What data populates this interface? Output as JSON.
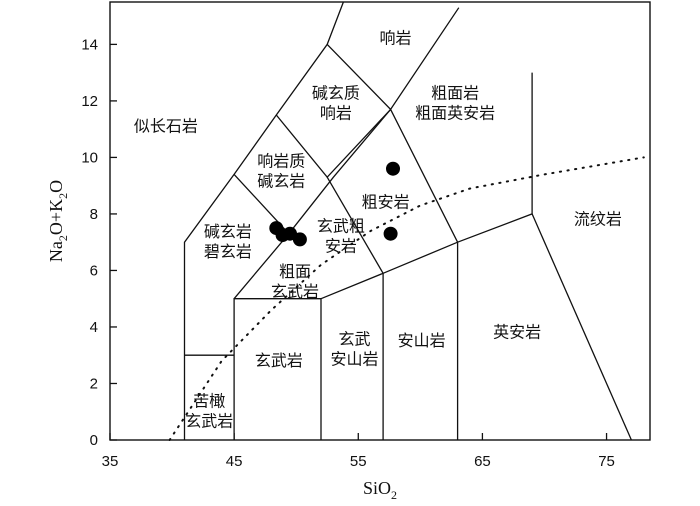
{
  "chart_data": {
    "type": "scatter",
    "title": "",
    "xlabel": {
      "main": "SiO",
      "sub": "2"
    },
    "ylabel": {
      "parts": [
        {
          "t": "Na"
        },
        {
          "t": "2",
          "sub": true
        },
        {
          "t": "O+K"
        },
        {
          "t": "2",
          "sub": true
        },
        {
          "t": "O"
        }
      ]
    },
    "xlim": [
      35,
      78.5
    ],
    "ylim": [
      0,
      15.5
    ],
    "xticks": [
      35,
      45,
      55,
      65,
      75
    ],
    "yticks": [
      0,
      2,
      4,
      6,
      8,
      10,
      12,
      14
    ],
    "grid": false,
    "fields": [
      {
        "lines": [
          "响岩"
        ],
        "x": 58,
        "y": 14.2
      },
      {
        "lines": [
          "碱玄质",
          "响岩"
        ],
        "x": 53.2,
        "y": 11.9
      },
      {
        "lines": [
          "似长石岩"
        ],
        "x": 39.5,
        "y": 11.1
      },
      {
        "lines": [
          "粗面岩",
          "粗面英安岩"
        ],
        "x": 62.8,
        "y": 11.9
      },
      {
        "lines": [
          "响岩质",
          "碱玄岩"
        ],
        "x": 48.8,
        "y": 9.5
      },
      {
        "lines": [
          "粗安岩"
        ],
        "x": 57.2,
        "y": 8.4
      },
      {
        "lines": [
          "碱玄岩",
          "碧玄岩"
        ],
        "x": 44.5,
        "y": 7.0
      },
      {
        "lines": [
          "玄武粗",
          "安岩"
        ],
        "x": 53.6,
        "y": 7.2
      },
      {
        "lines": [
          "粗面",
          "玄武岩"
        ],
        "x": 49.9,
        "y": 5.6
      },
      {
        "lines": [
          "流纹岩"
        ],
        "x": 74.3,
        "y": 7.8
      },
      {
        "lines": [
          "安山岩"
        ],
        "x": 60.1,
        "y": 3.5
      },
      {
        "lines": [
          "英安岩"
        ],
        "x": 67.8,
        "y": 3.8
      },
      {
        "lines": [
          "玄武岩"
        ],
        "x": 48.6,
        "y": 2.8
      },
      {
        "lines": [
          "玄武",
          "安山岩"
        ],
        "x": 54.7,
        "y": 3.2
      },
      {
        "lines": [
          "苦橄",
          "玄武岩"
        ],
        "x": 43.0,
        "y": 1.0
      }
    ],
    "boundaries": [
      [
        [
          41,
          0
        ],
        [
          41,
          7
        ],
        [
          45,
          9.4
        ],
        [
          48.4,
          11.5
        ],
        [
          52.5,
          14
        ],
        [
          53.8,
          15.5
        ]
      ],
      [
        [
          41,
          3
        ],
        [
          45,
          3
        ]
      ],
      [
        [
          45,
          0
        ],
        [
          45,
          5
        ],
        [
          52,
          5
        ],
        [
          52,
          0
        ]
      ],
      [
        [
          45,
          5
        ],
        [
          49.4,
          7.3
        ],
        [
          45,
          9.4
        ]
      ],
      [
        [
          49.4,
          7.3
        ],
        [
          53,
          9.3
        ],
        [
          57.6,
          11.7
        ],
        [
          63.1,
          15.3
        ]
      ],
      [
        [
          52,
          5
        ],
        [
          57,
          5.9
        ],
        [
          63,
          7
        ],
        [
          69,
          8
        ],
        [
          69,
          13
        ]
      ],
      [
        [
          57,
          0
        ],
        [
          57,
          5.9
        ]
      ],
      [
        [
          63,
          0
        ],
        [
          63,
          7
        ]
      ],
      [
        [
          69,
          8
        ],
        [
          77,
          0
        ]
      ],
      [
        [
          48.4,
          11.5
        ],
        [
          52.5,
          9.3
        ],
        [
          57.6,
          11.7
        ]
      ],
      [
        [
          52.5,
          9.3
        ],
        [
          57,
          5.9
        ]
      ],
      [
        [
          52.5,
          14
        ],
        [
          57.6,
          11.7
        ],
        [
          63,
          7
        ]
      ]
    ],
    "alkaline_divide": [
      [
        39.8,
        0
      ],
      [
        44,
        2.8
      ],
      [
        48,
        4.6
      ],
      [
        52,
        6.2
      ],
      [
        56,
        7.4
      ],
      [
        60,
        8.3
      ],
      [
        64,
        8.9
      ],
      [
        70,
        9.4
      ],
      [
        78,
        10
      ]
    ],
    "samples": [
      {
        "x": 48.4,
        "y": 7.5
      },
      {
        "x": 48.9,
        "y": 7.25
      },
      {
        "x": 49.5,
        "y": 7.3
      },
      {
        "x": 50.3,
        "y": 7.1
      },
      {
        "x": 57.8,
        "y": 9.6
      },
      {
        "x": 57.6,
        "y": 7.3
      }
    ]
  }
}
